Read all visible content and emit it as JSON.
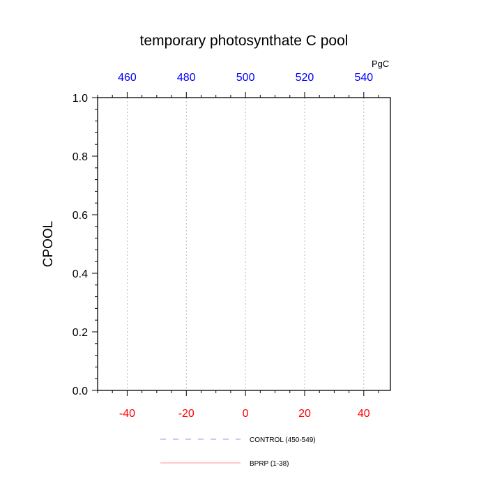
{
  "chart_data": {
    "type": "line",
    "title": "temporary photosynthate C pool",
    "ylabel": "CPOOL",
    "xlabel": "",
    "y_axis": {
      "range": [
        0.0,
        1.0
      ],
      "ticks": [
        0.0,
        0.2,
        0.4,
        0.6,
        0.8,
        1.0
      ],
      "tick_labels": [
        "0.0",
        "0.2",
        "0.4",
        "0.6",
        "0.8",
        "1.0"
      ]
    },
    "x_bottom_axis": {
      "range": [
        -50,
        49
      ],
      "ticks": [
        -40,
        -20,
        0,
        20,
        40
      ],
      "tick_labels": [
        "-40",
        "-20",
        "0",
        "20",
        "40"
      ],
      "color": "#ff0000"
    },
    "x_top_axis": {
      "range": [
        450,
        549
      ],
      "ticks": [
        460,
        480,
        500,
        520,
        540
      ],
      "tick_labels": [
        "460",
        "480",
        "500",
        "520",
        "540"
      ],
      "unit_label": "PgC",
      "color": "#0000ff"
    },
    "grid": "vertical dashed at bottom x ticks",
    "legend_placement": "bottom",
    "series": [
      {
        "name": "CONTROL (450-549)",
        "color": "#0000ff",
        "style": "dashed",
        "axis": "top",
        "x": [
          450,
          549
        ],
        "y": [
          0.0,
          0.0
        ]
      },
      {
        "name": "BPRP (1-38)",
        "color": "#ff0000",
        "style": "solid",
        "axis": "bottom",
        "x": [],
        "y": []
      }
    ]
  }
}
